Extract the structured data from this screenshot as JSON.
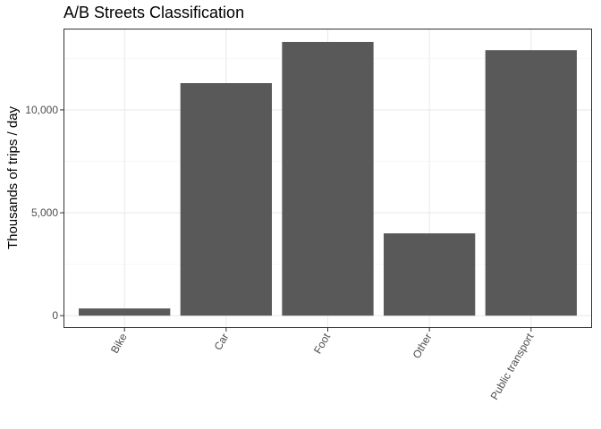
{
  "chart_data": {
    "type": "bar",
    "title": "A/B Streets Classification",
    "xlabel": "",
    "ylabel": "Thousands of trips / day",
    "categories": [
      "Bike",
      "Car",
      "Foot",
      "Other",
      "Public transport"
    ],
    "values": [
      350,
      11300,
      13300,
      4000,
      12900
    ],
    "ylim": [
      -600,
      13950
    ],
    "yticks": [
      0,
      5000,
      10000
    ],
    "ytick_labels": [
      "0",
      "5,000",
      "10,000"
    ],
    "grid": true,
    "legend": "none",
    "colors": {
      "bar": "#595959",
      "panel_border": "#333333",
      "grid_major": "#ebebeb",
      "grid_minor": "#f5f5f5",
      "tick_text": "#4d4d4d"
    }
  }
}
